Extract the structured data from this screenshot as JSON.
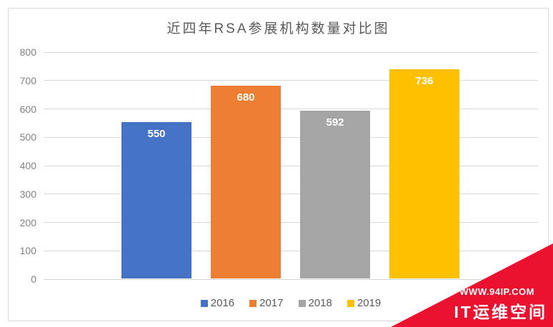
{
  "chart_data": {
    "type": "bar",
    "title": "近四年RSA参展机构数量对比图",
    "categories": [
      "2016",
      "2017",
      "2018",
      "2019"
    ],
    "values": [
      550,
      680,
      592,
      736
    ],
    "bar_colors": [
      "#4472C4",
      "#ED7D31",
      "#A5A5A5",
      "#FFC000"
    ],
    "xlabel": "",
    "ylabel": "",
    "ylim": [
      0,
      800
    ],
    "ytick_step": 100,
    "grid": true,
    "legend_position": "bottom",
    "data_labels_shown": true
  },
  "watermark": {
    "line1": "WWW.94IP.COM",
    "line2": "IT运维空间",
    "banner_color": "#EA122F"
  },
  "colors": {
    "gridline": "#D9D9D9",
    "frame_border": "#D9D9D9",
    "title_text": "#595959",
    "axis_label_text": "#808080",
    "legend_text": "#595959",
    "bar_label_text": "#FFFFFF"
  }
}
